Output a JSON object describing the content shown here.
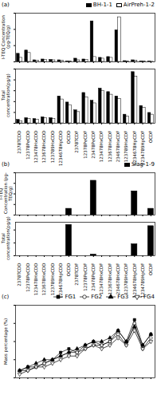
{
  "chart_data": [
    {
      "type": "bar",
      "title": "(a)",
      "ylabel": "I-TEQ Concentration (pg-TEQ/g)",
      "categories": [
        "2378TCDD",
        "12378PeCDD",
        "123478HxCDD",
        "123678HxCDD",
        "123789HxCDD",
        "1234678HpCDD",
        "OCDD",
        "2378TCDF",
        "12378PeCDF",
        "23478PeCDF",
        "123478HxCDF",
        "123678HxCDF",
        "234678HxCDF",
        "123789HxCDF",
        "1234678HpCDF",
        "1234789HpCDF",
        "OCDF"
      ],
      "series": [
        {
          "name": "BH-1-1",
          "color": "#000000",
          "values": [
            20,
            28,
            4,
            6,
            5,
            4,
            1,
            8,
            6,
            100,
            10,
            12,
            78,
            2,
            4,
            1,
            0.5
          ]
        },
        {
          "name": "AirPreh-1-2",
          "color": "#ffffff",
          "values": [
            10,
            22,
            3,
            5,
            4,
            3,
            1,
            4,
            5,
            12,
            8,
            10,
            110,
            1,
            3,
            1,
            0.3
          ]
        }
      ],
      "ylim": [
        0,
        120
      ],
      "yticks": [
        0,
        40,
        80,
        120
      ],
      "tick_labels": false,
      "legend": "top-right"
    },
    {
      "type": "bar",
      "ylabel": "Total concentration(pg/g)",
      "categories": [
        "2378TCDD",
        "12378PeCDD",
        "123478HxCDD",
        "123678HxCDD",
        "123789HxCDD",
        "1234678HpCDD",
        "OCDD",
        "2378TCDF",
        "12378PeCDF",
        "23478PeCDF",
        "123478HxCDF",
        "123678HxCDF",
        "234678HxCDF",
        "123789HxCDF",
        "1234678HpCDF",
        "1234789HpCDF",
        "OCDF"
      ],
      "series": [
        {
          "name": "BH-1-1",
          "color": "#000000",
          "values": [
            8,
            12,
            10,
            14,
            12,
            62,
            48,
            30,
            70,
            52,
            80,
            72,
            62,
            20,
            118,
            40,
            24
          ]
        },
        {
          "name": "AirPreh-1-2",
          "color": "#ffffff",
          "values": [
            5,
            10,
            8,
            12,
            10,
            55,
            42,
            26,
            60,
            46,
            75,
            66,
            56,
            16,
            108,
            36,
            20
          ]
        }
      ],
      "ylim": [
        0,
        125
      ],
      "yticks": [
        0,
        25,
        50,
        75,
        100,
        125
      ],
      "tick_labels": "x"
    },
    {
      "type": "bar",
      "title": "(b)",
      "ylabel": "I-TEQ Concentration (pg-TEQ/g)",
      "categories": [
        "2378TCDD",
        "12378PeCDD",
        "123478HxCDD",
        "123678HxCDD",
        "123789HxCDD",
        "1234678HpCDD",
        "OCDD",
        "2378TCDF",
        "12378PeCDF",
        "23478PeCDF",
        "123478HxCDF",
        "123678HxCDF",
        "234678HxCDF",
        "123789HxCDF",
        "1234678HpCDF",
        "1234789HpCDF",
        "OCDF"
      ],
      "series": [
        {
          "name": "Slag-1-9",
          "color": "#000000",
          "values": [
            0,
            0,
            0,
            0,
            0,
            0,
            0.12,
            0,
            0,
            0.65,
            0,
            0,
            0,
            0,
            0.45,
            0,
            0.12
          ]
        }
      ],
      "ylim": [
        0,
        0.8
      ],
      "yticks": [
        0,
        0.2,
        0.4,
        0.6,
        0.8
      ],
      "tick_labels": false,
      "legend": "top-right"
    },
    {
      "type": "bar",
      "ylabel": "Total concentration(pg/g)",
      "categories": [
        "2378TCDD",
        "12378PeCDD",
        "123478HxCDD",
        "123678HxCDD",
        "123789HxCDD",
        "1234678HpCDD",
        "OCDD",
        "2378TCDF",
        "12378PeCDF",
        "23478PeCDF",
        "123478HxCDF",
        "123678HxCDF",
        "234678HxCDF",
        "123789HxCDF",
        "1234678HpCDF",
        "1234789HpCDF",
        "OCDF"
      ],
      "series": [
        {
          "name": "Slag-1-9",
          "color": "#000000",
          "values": [
            0,
            0,
            0,
            0,
            0,
            0,
            120,
            0,
            0,
            5,
            0,
            0,
            0,
            0,
            45,
            0,
            115
          ]
        }
      ],
      "ylim": [
        0,
        130
      ],
      "yticks": [
        0,
        50,
        100
      ],
      "tick_labels": "x"
    },
    {
      "type": "line",
      "title": "(c)",
      "ylabel": "Mass percentage (%)",
      "categories": [
        "2378TCDD",
        "12378PeCDD",
        "123478HxCDD",
        "123678HxCDD",
        "123789HxCDD",
        "1234678HpCDD",
        "OCDD",
        "2378TCDF",
        "12378PeCDF",
        "23478PeCDF",
        "123478HxCDF",
        "123678HxCDF",
        "234678HxCDF",
        "123789HxCDF",
        "1234678HpCDF",
        "1234789HpCDF",
        "OCDF"
      ],
      "series": [
        {
          "name": "FG1",
          "color": "#000000",
          "marker": "square",
          "values": [
            0.02,
            0.03,
            0.03,
            0.04,
            0.05,
            0.07,
            0.08,
            0.07,
            0.09,
            0.1,
            0.09,
            0.1,
            0.13,
            0.1,
            0.16,
            0.09,
            0.12
          ]
        },
        {
          "name": "FG2",
          "color": "#000000",
          "marker": "circle-open",
          "values": [
            0.02,
            0.02,
            0.03,
            0.04,
            0.05,
            0.06,
            0.07,
            0.07,
            0.08,
            0.09,
            0.09,
            0.1,
            0.12,
            0.09,
            0.15,
            0.08,
            0.11
          ]
        },
        {
          "name": "FG3",
          "color": "#000000",
          "marker": "triangle",
          "values": [
            0.02,
            0.03,
            0.04,
            0.05,
            0.05,
            0.06,
            0.07,
            0.08,
            0.09,
            0.1,
            0.1,
            0.11,
            0.13,
            0.1,
            0.14,
            0.09,
            0.12
          ]
        },
        {
          "name": "FG4",
          "color": "#000000",
          "marker": "triangle-down-open",
          "values": [
            0.01,
            0.02,
            0.03,
            0.03,
            0.04,
            0.05,
            0.06,
            0.06,
            0.08,
            0.09,
            0.08,
            0.09,
            0.11,
            0.09,
            0.13,
            0.08,
            0.1
          ]
        }
      ],
      "ylim": [
        0,
        0.2
      ],
      "yticks": [
        0,
        0.05,
        0.1,
        0.15,
        0.2
      ],
      "tick_labels": false,
      "legend": "top-right"
    }
  ]
}
